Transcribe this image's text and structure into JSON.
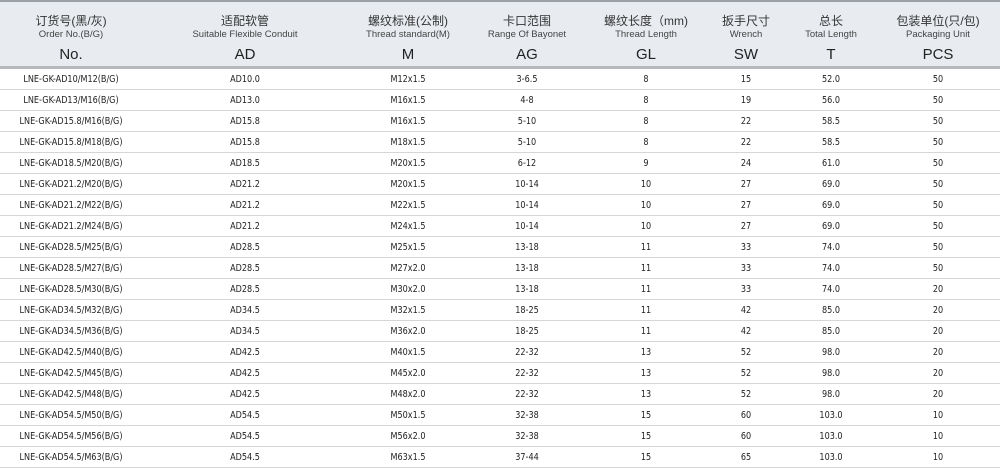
{
  "columns": [
    {
      "zh": "订货号(黑/灰)",
      "en": "Order No.(B/G)",
      "code": "No."
    },
    {
      "zh": "适配软管",
      "en": "Suitable Flexible Conduit",
      "code": "AD"
    },
    {
      "zh": "螺纹标准(公制)",
      "en": "Thread standard(M)",
      "code": "M"
    },
    {
      "zh": "卡口范围",
      "en": "Range Of Bayonet",
      "code": "AG"
    },
    {
      "zh": "螺纹长度（mm)",
      "en": "Thread Length",
      "code": "GL"
    },
    {
      "zh": "扳手尺寸",
      "en": "Wrench",
      "code": "SW"
    },
    {
      "zh": "总长",
      "en": "Total Length",
      "code": "T"
    },
    {
      "zh": "包装单位(只/包)",
      "en": "Packaging Unit",
      "code": "PCS"
    }
  ],
  "rows": [
    [
      "LNE-GK-AD10/M12(B/G)",
      "AD10.0",
      "M12x1.5",
      "3-6.5",
      "8",
      "15",
      "52.0",
      "50"
    ],
    [
      "LNE-GK-AD13/M16(B/G)",
      "AD13.0",
      "M16x1.5",
      "4-8",
      "8",
      "19",
      "56.0",
      "50"
    ],
    [
      "LNE-GK-AD15.8/M16(B/G)",
      "AD15.8",
      "M16x1.5",
      "5-10",
      "8",
      "22",
      "58.5",
      "50"
    ],
    [
      "LNE-GK-AD15.8/M18(B/G)",
      "AD15.8",
      "M18x1.5",
      "5-10",
      "8",
      "22",
      "58.5",
      "50"
    ],
    [
      "LNE-GK-AD18.5/M20(B/G)",
      "AD18.5",
      "M20x1.5",
      "6-12",
      "9",
      "24",
      "61.0",
      "50"
    ],
    [
      "LNE-GK-AD21.2/M20(B/G)",
      "AD21.2",
      "M20x1.5",
      "10-14",
      "10",
      "27",
      "69.0",
      "50"
    ],
    [
      "LNE-GK-AD21.2/M22(B/G)",
      "AD21.2",
      "M22x1.5",
      "10-14",
      "10",
      "27",
      "69.0",
      "50"
    ],
    [
      "LNE-GK-AD21.2/M24(B/G)",
      "AD21.2",
      "M24x1.5",
      "10-14",
      "10",
      "27",
      "69.0",
      "50"
    ],
    [
      "LNE-GK-AD28.5/M25(B/G)",
      "AD28.5",
      "M25x1.5",
      "13-18",
      "11",
      "33",
      "74.0",
      "50"
    ],
    [
      "LNE-GK-AD28.5/M27(B/G)",
      "AD28.5",
      "M27x2.0",
      "13-18",
      "11",
      "33",
      "74.0",
      "50"
    ],
    [
      "LNE-GK-AD28.5/M30(B/G)",
      "AD28.5",
      "M30x2.0",
      "13-18",
      "11",
      "33",
      "74.0",
      "20"
    ],
    [
      "LNE-GK-AD34.5/M32(B/G)",
      "AD34.5",
      "M32x1.5",
      "18-25",
      "11",
      "42",
      "85.0",
      "20"
    ],
    [
      "LNE-GK-AD34.5/M36(B/G)",
      "AD34.5",
      "M36x2.0",
      "18-25",
      "11",
      "42",
      "85.0",
      "20"
    ],
    [
      "LNE-GK-AD42.5/M40(B/G)",
      "AD42.5",
      "M40x1.5",
      "22-32",
      "13",
      "52",
      "98.0",
      "20"
    ],
    [
      "LNE-GK-AD42.5/M45(B/G)",
      "AD42.5",
      "M45x2.0",
      "22-32",
      "13",
      "52",
      "98.0",
      "20"
    ],
    [
      "LNE-GK-AD42.5/M48(B/G)",
      "AD42.5",
      "M48x2.0",
      "22-32",
      "13",
      "52",
      "98.0",
      "20"
    ],
    [
      "LNE-GK-AD54.5/M50(B/G)",
      "AD54.5",
      "M50x1.5",
      "32-38",
      "15",
      "60",
      "103.0",
      "10"
    ],
    [
      "LNE-GK-AD54.5/M56(B/G)",
      "AD54.5",
      "M56x2.0",
      "32-38",
      "15",
      "60",
      "103.0",
      "10"
    ],
    [
      "LNE-GK-AD54.5/M63(B/G)",
      "AD54.5",
      "M63x1.5",
      "37-44",
      "15",
      "65",
      "103.0",
      "10"
    ]
  ]
}
